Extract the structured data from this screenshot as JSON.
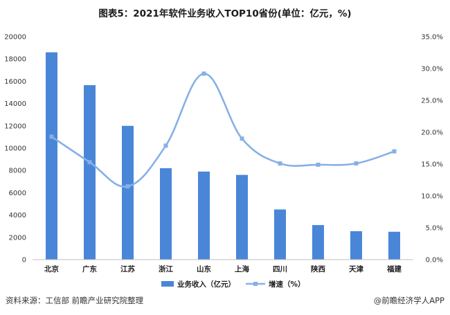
{
  "title": "图表5：2021年软件业务收入TOP10省份(单位：亿元，%)",
  "source_text": "资料来源：工信部 前瞻产业研究院整理",
  "brand_text": "@前瞻经济学人APP",
  "colors": {
    "bar": "#4a86d8",
    "line": "#86b0e6",
    "axis": "#333333"
  },
  "chart_data": {
    "type": "bar+line",
    "categories": [
      "北京",
      "广东",
      "江苏",
      "浙江",
      "山东",
      "上海",
      "四川",
      "陕西",
      "天津",
      "福建"
    ],
    "series": [
      {
        "name": "业务收入（亿元）",
        "type": "bar",
        "axis": "left",
        "values": [
          18600,
          15650,
          12000,
          8200,
          7900,
          7600,
          4500,
          3100,
          2550,
          2500
        ]
      },
      {
        "name": "增速（%）",
        "type": "line",
        "axis": "right",
        "smooth": true,
        "values": [
          19.3,
          15.3,
          11.5,
          17.9,
          29.2,
          19.0,
          15.1,
          14.9,
          15.1,
          17.0
        ]
      }
    ],
    "y_left": {
      "ylim": [
        0,
        20000
      ],
      "ticks": [
        "0",
        "2000",
        "4000",
        "6000",
        "8000",
        "10000",
        "12000",
        "14000",
        "16000",
        "18000",
        "20000"
      ]
    },
    "y_right": {
      "ylim": [
        0,
        35
      ],
      "ticks": [
        "0.0%",
        "5.0%",
        "10.0%",
        "15.0%",
        "20.0%",
        "25.0%",
        "30.0%",
        "35.0%"
      ]
    },
    "grid": false,
    "legend_position": "bottom"
  }
}
